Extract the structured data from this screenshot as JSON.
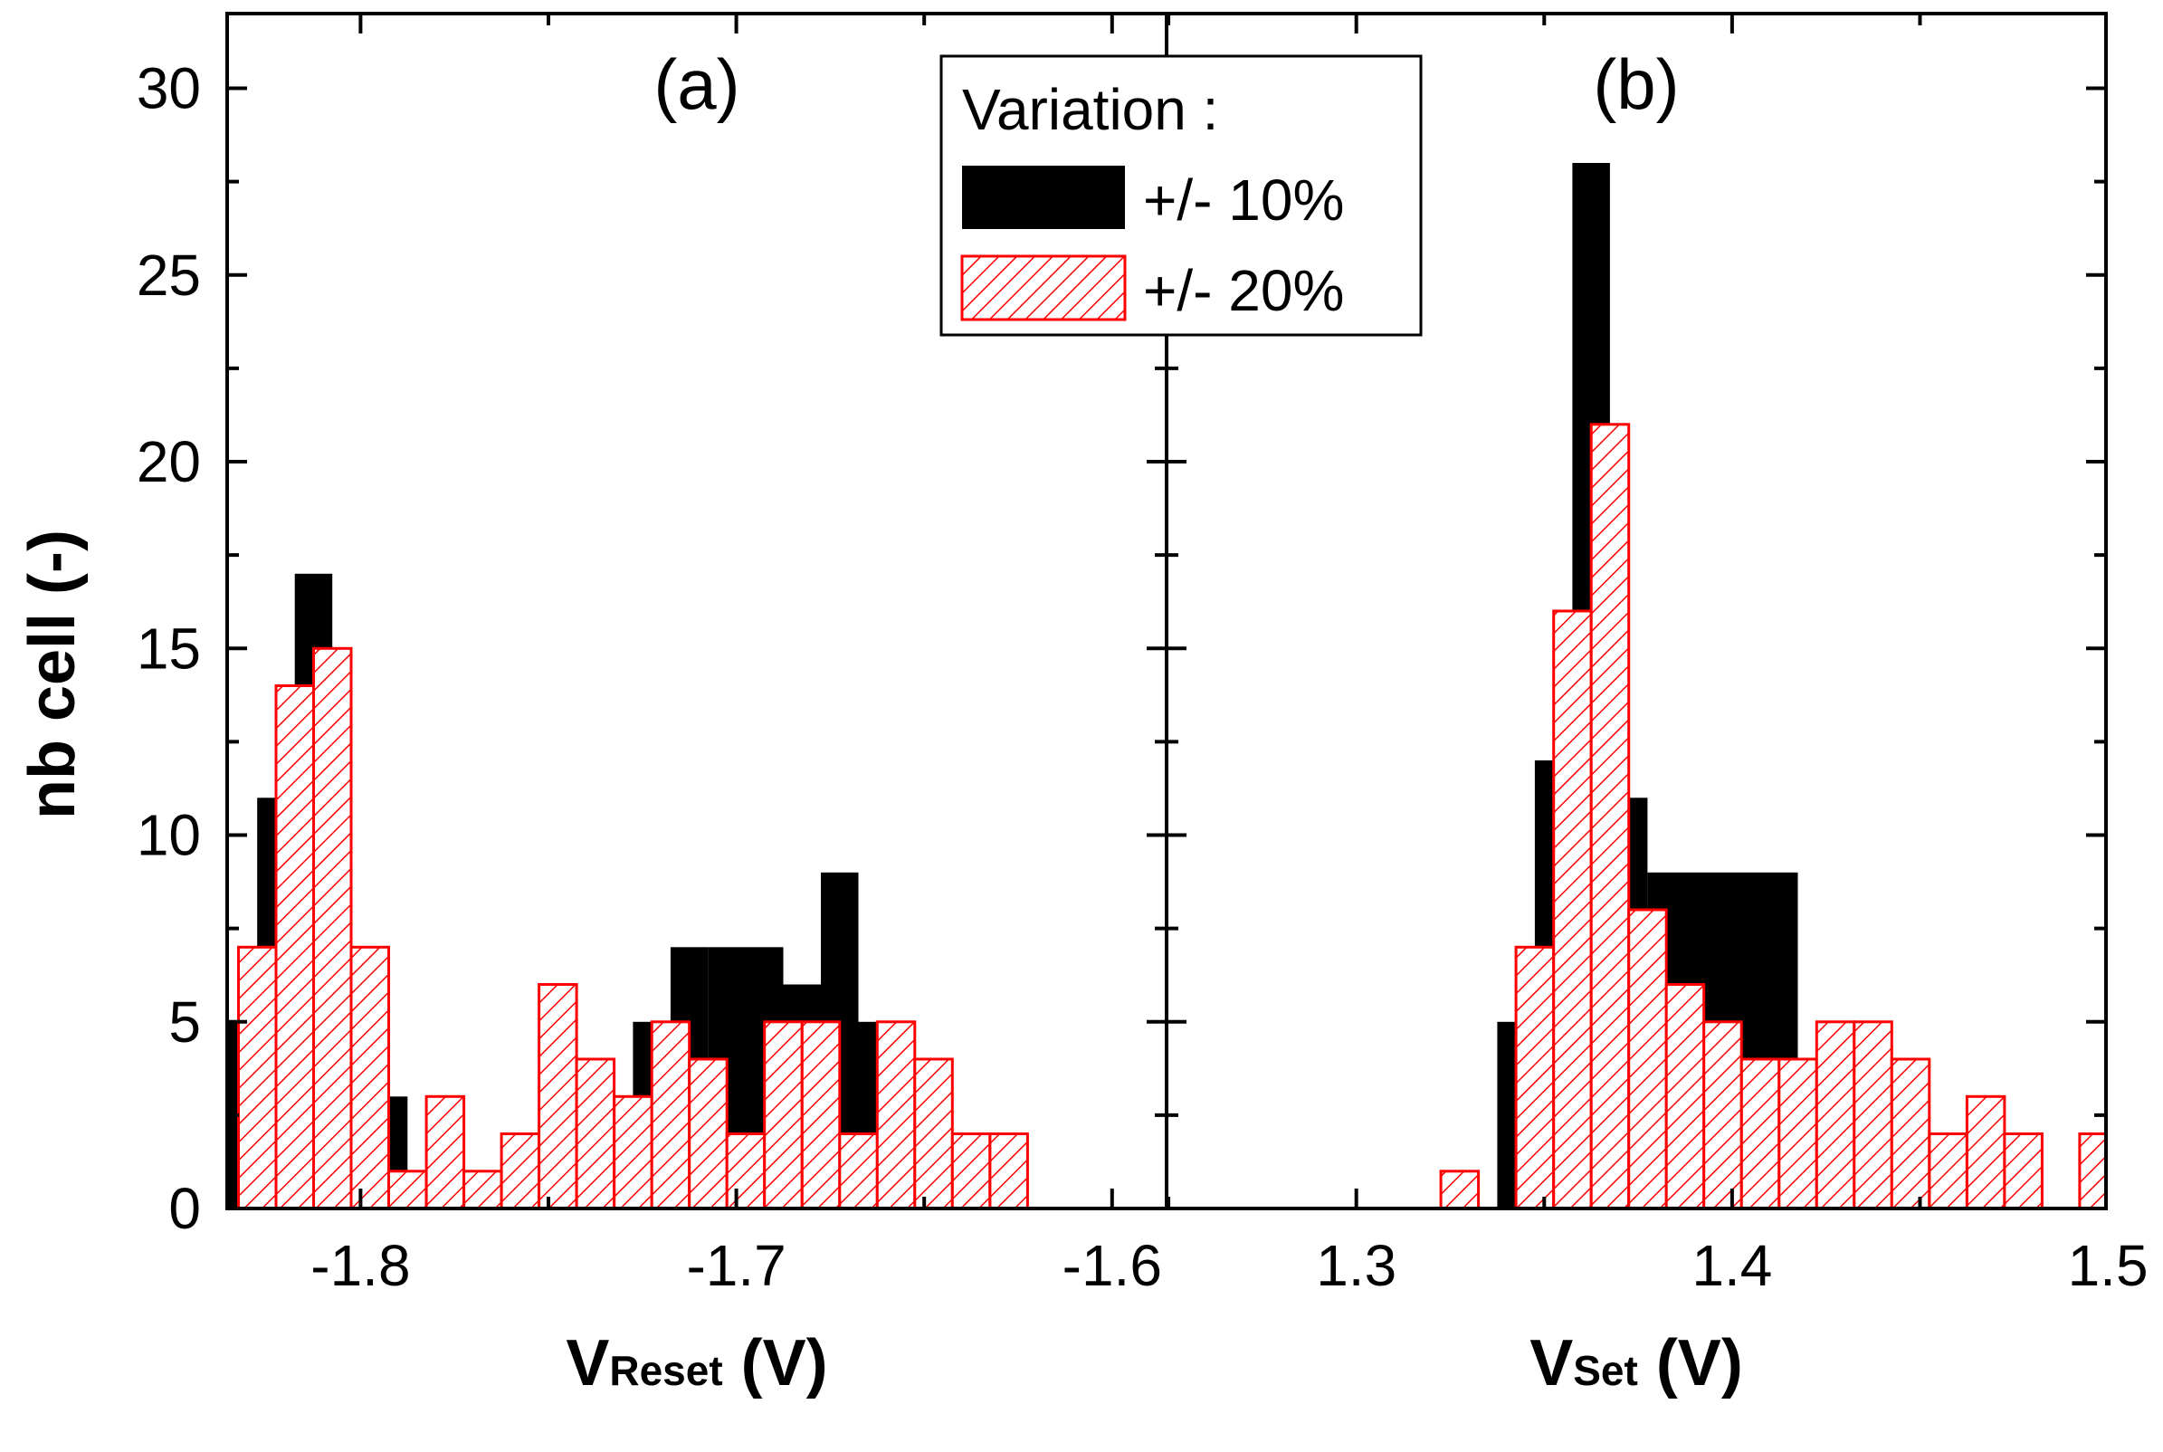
{
  "chart_data": [
    {
      "panel": "(a)",
      "type": "bar",
      "xlabel_main": "V",
      "xlabel_sub": "Reset",
      "xlabel_unit": " (V)",
      "xlim": [
        -1.8355,
        -1.5855
      ],
      "ylim": [
        0,
        32
      ],
      "xticks": [
        -1.8,
        -1.7,
        -1.6
      ],
      "xtick_labels": [
        "-1.8",
        "-1.7",
        "-1.6"
      ],
      "bin_width": 0.01,
      "series": [
        {
          "name": "+/- 10%",
          "style": "solid-black",
          "x": [
            -1.8325,
            -1.8225,
            -1.8125,
            -1.8025,
            -1.7925,
            -1.7825,
            -1.7725,
            -1.7625,
            -1.7525,
            -1.7425,
            -1.7325,
            -1.7225,
            -1.7125,
            -1.7025,
            -1.6925,
            -1.6825,
            -1.6725,
            -1.6625,
            -1.6525,
            -1.6425,
            -1.6325,
            -1.6225,
            -1.6125,
            -1.6025
          ],
          "values": [
            5,
            11,
            17,
            6,
            3,
            1,
            0,
            0,
            0,
            2,
            3,
            5,
            7,
            7,
            7,
            6,
            9,
            5,
            1,
            0,
            0,
            0,
            0,
            0
          ]
        },
        {
          "name": "+/- 20%",
          "style": "red-hatched",
          "x": [
            -1.8275,
            -1.8175,
            -1.8075,
            -1.7975,
            -1.7875,
            -1.7775,
            -1.7675,
            -1.7575,
            -1.7475,
            -1.7375,
            -1.7275,
            -1.7175,
            -1.7075,
            -1.6975,
            -1.6875,
            -1.6775,
            -1.6675,
            -1.6575,
            -1.6475,
            -1.6375,
            -1.6275,
            -1.6175
          ],
          "values": [
            7,
            14,
            15,
            7,
            1,
            3,
            1,
            2,
            6,
            4,
            3,
            5,
            4,
            2,
            5,
            5,
            2,
            5,
            4,
            2,
            2,
            0
          ]
        }
      ]
    },
    {
      "panel": "(b)",
      "type": "bar",
      "xlabel_main": "V",
      "xlabel_sub": "Set",
      "xlabel_unit": " (V)",
      "xlim": [
        1.2495,
        1.4995
      ],
      "ylim": [
        0,
        32
      ],
      "xticks": [
        1.3,
        1.4,
        1.5
      ],
      "xtick_labels": [
        "1.3",
        "1.4",
        "1.5"
      ],
      "bin_width": 0.01,
      "series": [
        {
          "name": "+/- 10%",
          "style": "solid-black",
          "x": [
            1.3425,
            1.3525,
            1.3625,
            1.3725,
            1.3825,
            1.3925,
            1.4025,
            1.4125,
            1.4225
          ],
          "values": [
            5,
            12,
            28,
            11,
            9,
            9,
            9,
            9,
            3
          ]
        },
        {
          "name": "+/- 20%",
          "style": "red-hatched",
          "x": [
            1.3275,
            1.3375,
            1.3475,
            1.3575,
            1.3675,
            1.3775,
            1.3875,
            1.3975,
            1.4075,
            1.4175,
            1.4275,
            1.4375,
            1.4475,
            1.4575,
            1.4675,
            1.4775,
            1.4875,
            1.4975
          ],
          "values": [
            1,
            0,
            7,
            16,
            21,
            8,
            6,
            5,
            4,
            4,
            5,
            5,
            4,
            2,
            3,
            2,
            0,
            2
          ]
        }
      ]
    }
  ],
  "y_axis": {
    "label": "nb cell (-)",
    "ticks": [
      0,
      5,
      10,
      15,
      20,
      25,
      30
    ],
    "tick_labels": [
      "0",
      "5",
      "10",
      "15",
      "20",
      "25",
      "30"
    ]
  },
  "legend": {
    "title": "Variation :",
    "entries": [
      "+/- 10%",
      "+/- 20%"
    ],
    "placement": "top-center"
  },
  "colors": {
    "bar10": "#000000",
    "bar20": "#ff0000",
    "axis": "#000000"
  }
}
